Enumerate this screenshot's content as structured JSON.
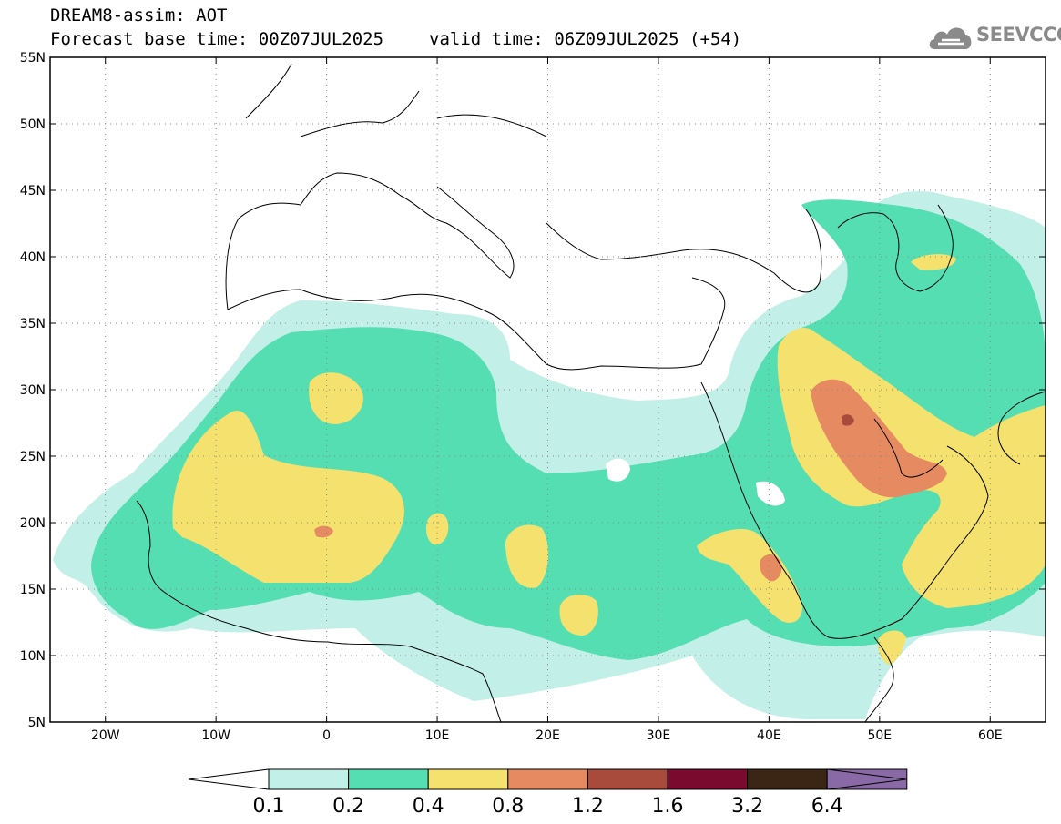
{
  "header": {
    "title": "DREAM8-assim: AOT",
    "base_time": "Forecast base time: 00Z07JUL2025",
    "valid_time": "valid time: 06Z09JUL2025 (+54)"
  },
  "logo": {
    "text": "SEEVCCC",
    "icon": "cloud-icon"
  },
  "map": {
    "lon_range": [
      -25,
      65
    ],
    "lat_range": [
      5,
      55
    ],
    "lat_ticks": [
      "55N",
      "50N",
      "45N",
      "40N",
      "35N",
      "30N",
      "25N",
      "20N",
      "15N",
      "10N",
      "5N"
    ],
    "lon_ticks": [
      "20W",
      "10W",
      "0",
      "10E",
      "20E",
      "30E",
      "40E",
      "50E",
      "60E"
    ],
    "gridlines": "dotted"
  },
  "colorbar": {
    "labels": [
      "0.1",
      "0.2",
      "0.4",
      "0.8",
      "1.2",
      "1.6",
      "3.2",
      "6.4"
    ],
    "colors": [
      "#ffffff",
      "#c2efe8",
      "#55deb2",
      "#f5e26e",
      "#e68a62",
      "#a84a3c",
      "#7a0a2e",
      "#3b2615",
      "#8a6aa6"
    ]
  }
}
